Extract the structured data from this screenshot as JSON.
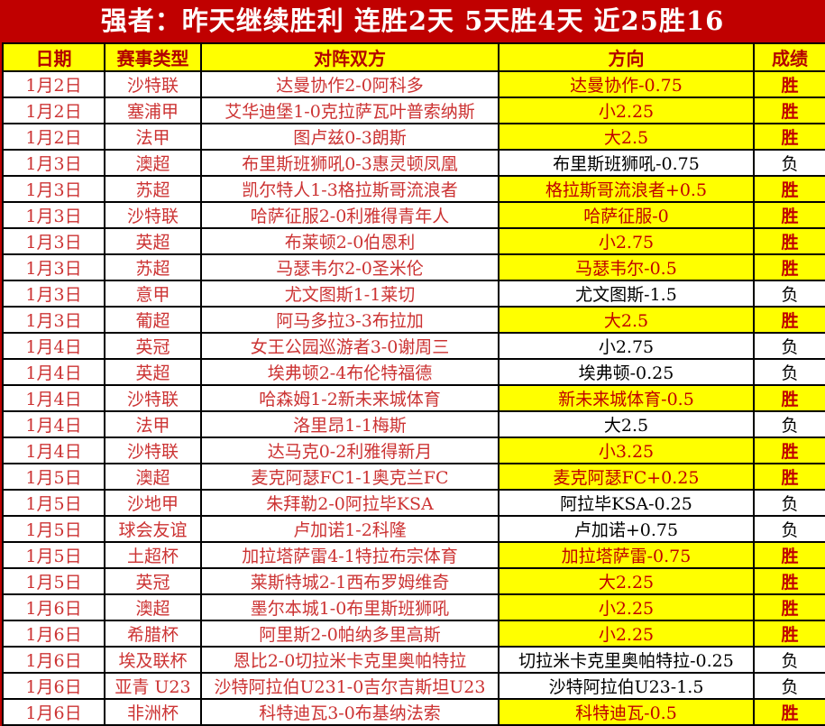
{
  "title": "强者：昨天继续胜利 连胜2天 5天胜4天 近25胜16",
  "columns": [
    "日期",
    "赛事类型",
    "对阵双方",
    "方向",
    "成绩"
  ],
  "result_labels": {
    "win": "胜",
    "loss": "负"
  },
  "colors": {
    "page_background": "#c00000",
    "title_text": "#ffffff",
    "header_background": "#ffff00",
    "header_text": "#b30000",
    "win_background": "#ffff00",
    "win_text": "#c00000",
    "loss_background": "#ffffff",
    "loss_text": "#000000",
    "row_text": "#cc3333",
    "border": "#000000"
  },
  "rows": [
    {
      "date": "1月2日",
      "league": "沙特联",
      "match": "达曼协作2-0阿科多",
      "direction": "达曼协作-0.75",
      "result": "胜",
      "win": true
    },
    {
      "date": "1月2日",
      "league": "塞浦甲",
      "match": "艾华迪堡1-0克拉萨瓦叶普索纳斯",
      "direction": "小2.25",
      "result": "胜",
      "win": true
    },
    {
      "date": "1月2日",
      "league": "法甲",
      "match": "图卢兹0-3朗斯",
      "direction": "大2.5",
      "result": "胜",
      "win": true
    },
    {
      "date": "1月3日",
      "league": "澳超",
      "match": "布里斯班狮吼0-3惠灵顿凤凰",
      "direction": "布里斯班狮吼-0.75",
      "result": "负",
      "win": false
    },
    {
      "date": "1月3日",
      "league": "苏超",
      "match": "凯尔特人1-3格拉斯哥流浪者",
      "direction": "格拉斯哥流浪者+0.5",
      "result": "胜",
      "win": true
    },
    {
      "date": "1月3日",
      "league": "沙特联",
      "match": "哈萨征服2-0利雅得青年人",
      "direction": "哈萨征服-0",
      "result": "胜",
      "win": true
    },
    {
      "date": "1月3日",
      "league": "英超",
      "match": "布莱顿2-0伯恩利",
      "direction": "小2.75",
      "result": "胜",
      "win": true
    },
    {
      "date": "1月3日",
      "league": "苏超",
      "match": "马瑟韦尔2-0圣米伦",
      "direction": "马瑟韦尔-0.5",
      "result": "胜",
      "win": true
    },
    {
      "date": "1月3日",
      "league": "意甲",
      "match": "尤文图斯1-1莱切",
      "direction": "尤文图斯-1.5",
      "result": "负",
      "win": false
    },
    {
      "date": "1月3日",
      "league": "葡超",
      "match": "阿马多拉3-3布拉加",
      "direction": "大2.5",
      "result": "胜",
      "win": true
    },
    {
      "date": "1月4日",
      "league": "英冠",
      "match": "女王公园巡游者3-0谢周三",
      "direction": "小2.75",
      "result": "负",
      "win": false
    },
    {
      "date": "1月4日",
      "league": "英超",
      "match": "埃弗顿2-4布伦特福德",
      "direction": "埃弗顿-0.25",
      "result": "负",
      "win": false
    },
    {
      "date": "1月4日",
      "league": "沙特联",
      "match": "哈森姆1-2新未来城体育",
      "direction": "新未来城体育-0.5",
      "result": "胜",
      "win": true
    },
    {
      "date": "1月4日",
      "league": "法甲",
      "match": "洛里昂1-1梅斯",
      "direction": "大2.5",
      "result": "负",
      "win": false
    },
    {
      "date": "1月4日",
      "league": "沙特联",
      "match": "达马克0-2利雅得新月",
      "direction": "小3.25",
      "result": "胜",
      "win": true
    },
    {
      "date": "1月5日",
      "league": "澳超",
      "match": "麦克阿瑟FC1-1奥克兰FC",
      "direction": "麦克阿瑟FC+0.25",
      "result": "胜",
      "win": true
    },
    {
      "date": "1月5日",
      "league": "沙地甲",
      "match": "朱拜勒2-0阿拉毕KSA",
      "direction": "阿拉毕KSA-0.25",
      "result": "负",
      "win": false
    },
    {
      "date": "1月5日",
      "league": "球会友谊",
      "match": "卢加诺1-2科隆",
      "direction": "卢加诺+0.75",
      "result": "负",
      "win": false
    },
    {
      "date": "1月5日",
      "league": "土超杯",
      "match": "加拉塔萨雷4-1特拉布宗体育",
      "direction": "加拉塔萨雷-0.75",
      "result": "胜",
      "win": true
    },
    {
      "date": "1月5日",
      "league": "英冠",
      "match": "莱斯特城2-1西布罗姆维奇",
      "direction": "大2.25",
      "result": "胜",
      "win": true
    },
    {
      "date": "1月6日",
      "league": "澳超",
      "match": "墨尔本城1-0布里斯班狮吼",
      "direction": "小2.25",
      "result": "胜",
      "win": true
    },
    {
      "date": "1月6日",
      "league": "希腊杯",
      "match": "阿里斯2-0帕纳多里高斯",
      "direction": "小2.25",
      "result": "胜",
      "win": true
    },
    {
      "date": "1月6日",
      "league": "埃及联杯",
      "match": "恩比2-0切拉米卡克里奥帕特拉",
      "direction": "切拉米卡克里奥帕特拉-0.25",
      "result": "负",
      "win": false
    },
    {
      "date": "1月6日",
      "league": "亚青 U23",
      "match": "沙特阿拉伯U231-0吉尔吉斯坦U23",
      "direction": "沙特阿拉伯U23-1.5",
      "result": "负",
      "win": false
    },
    {
      "date": "1月6日",
      "league": "非洲杯",
      "match": "科特迪瓦3-0布基纳法索",
      "direction": "科特迪瓦-0.5",
      "result": "胜",
      "win": true
    }
  ]
}
